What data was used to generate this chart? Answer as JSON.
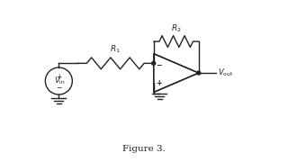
{
  "title": "Figure 3.",
  "bg_color": "#ffffff",
  "line_color": "#222222",
  "fig_width": 3.2,
  "fig_height": 1.8,
  "dpi": 100,
  "xlim": [
    0,
    8
  ],
  "ylim": [
    0,
    5
  ]
}
